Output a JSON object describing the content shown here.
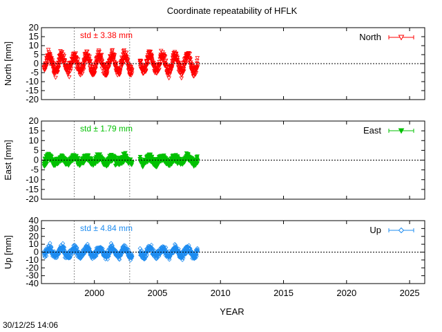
{
  "title": "Coordinate repeatability of HFLK",
  "timestamp": "30/12/25 14:06",
  "xlabel": "YEAR",
  "chart_data": [
    {
      "type": "scatter",
      "title": "Coordinate repeatability of HFLK",
      "panel": "north",
      "ylabel": "North [mm]",
      "legend": "North",
      "legend_position": "top-right",
      "std_label": "std ± 3.38 mm",
      "color": "#ff0000",
      "marker": "triangle-down-open",
      "xlim": [
        1995.8,
        2026.2
      ],
      "ylim": [
        -20,
        20
      ],
      "yticks": [
        -20,
        -15,
        -10,
        -5,
        0,
        5,
        10,
        15,
        20
      ],
      "ytick_labels": [
        "-20",
        "-15",
        "-10",
        "-5",
        "0",
        "5",
        "10",
        "15",
        "20"
      ],
      "xticks": [
        2000,
        2005,
        2010,
        2015,
        2020,
        2025
      ],
      "xtick_labels": [],
      "std": 3.38,
      "amplitude": 4.5,
      "noise": 2.2,
      "vertical_lines": [
        1998.4,
        2002.8
      ],
      "zero_line": 0,
      "data_range": [
        1996.0,
        2008.2
      ],
      "gap": [
        2003.0,
        2003.6
      ]
    },
    {
      "type": "scatter",
      "panel": "east",
      "ylabel": "East [mm]",
      "legend": "East",
      "legend_position": "top-right",
      "std_label": "std ± 1.79 mm",
      "color": "#00c000",
      "marker": "triangle-down-filled",
      "xlim": [
        1995.8,
        2026.2
      ],
      "ylim": [
        -20,
        20
      ],
      "yticks": [
        -20,
        -15,
        -10,
        -5,
        0,
        5,
        10,
        15,
        20
      ],
      "ytick_labels": [
        "-20",
        "-15",
        "-10",
        "-5",
        "0",
        "5",
        "10",
        "15",
        "20"
      ],
      "xticks": [
        2000,
        2005,
        2010,
        2015,
        2020,
        2025
      ],
      "xtick_labels": [],
      "std": 1.79,
      "amplitude": 1.5,
      "noise": 1.4,
      "vertical_lines": [
        1998.4,
        2002.8
      ],
      "zero_line": 0,
      "data_range": [
        1996.0,
        2008.2
      ],
      "gap": [
        2003.0,
        2003.6
      ]
    },
    {
      "type": "scatter",
      "panel": "up",
      "ylabel": "Up [mm]",
      "legend": "Up",
      "legend_position": "top-right",
      "std_label": "std ± 4.84 mm",
      "color": "#1e8cf0",
      "marker": "diamond-open",
      "xlim": [
        1995.8,
        2026.2
      ],
      "ylim": [
        -40,
        40
      ],
      "yticks": [
        -40,
        -30,
        -20,
        -10,
        0,
        10,
        20,
        30,
        40
      ],
      "ytick_labels": [
        "-40",
        "-30",
        "-20",
        "-10",
        "0",
        "10",
        "20",
        "30",
        "40"
      ],
      "xticks": [
        2000,
        2005,
        2010,
        2015,
        2020,
        2025
      ],
      "xtick_labels": [
        "2000",
        "2005",
        "2010",
        "2015",
        "2020",
        "2025"
      ],
      "std": 4.84,
      "amplitude": 5.0,
      "noise": 3.6,
      "vertical_lines": [
        1998.4,
        2002.8
      ],
      "zero_line": 0,
      "data_range": [
        1996.0,
        2008.2
      ],
      "gap": [
        2003.0,
        2003.6
      ]
    }
  ]
}
